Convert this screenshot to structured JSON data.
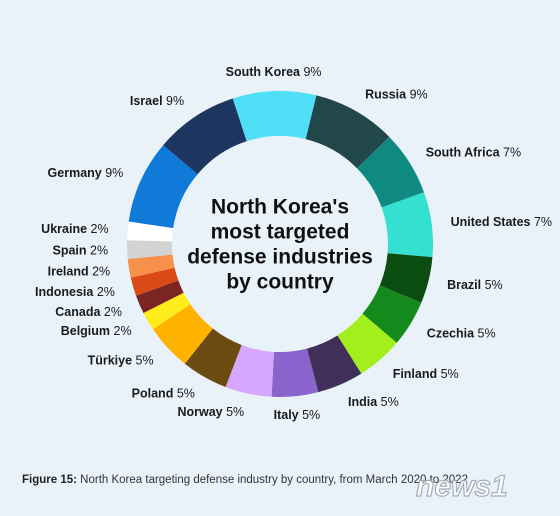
{
  "chart_data": {
    "type": "pie",
    "donut": true,
    "center_title_lines": [
      "North Korea's",
      "most targeted",
      "defense industries",
      "by country"
    ],
    "slices": [
      {
        "name": "South Korea",
        "label": "9%",
        "value": 9,
        "color": "#4fe0f7"
      },
      {
        "name": "Russia",
        "label": "9%",
        "value": 9,
        "color": "#22474a"
      },
      {
        "name": "South Africa",
        "label": "7%",
        "value": 7,
        "color": "#0e8a80"
      },
      {
        "name": "United States",
        "label": "7%",
        "value": 7,
        "color": "#34e0cf"
      },
      {
        "name": "Brazil",
        "label": "5%",
        "value": 5,
        "color": "#0b4d10"
      },
      {
        "name": "Czechia",
        "label": "5%",
        "value": 5,
        "color": "#158a1c"
      },
      {
        "name": "Finland",
        "label": "5%",
        "value": 5,
        "color": "#a2ef1b"
      },
      {
        "name": "India",
        "label": "5%",
        "value": 5,
        "color": "#3f2f59"
      },
      {
        "name": "Italy",
        "label": "5%",
        "value": 5,
        "color": "#8a63cc"
      },
      {
        "name": "Norway",
        "label": "5%",
        "value": 5,
        "color": "#d7a6ff"
      },
      {
        "name": "Poland",
        "label": "5%",
        "value": 5,
        "color": "#6b4b12"
      },
      {
        "name": "Türkiye",
        "label": "5%",
        "value": 5,
        "color": "#ffb300"
      },
      {
        "name": "Belgium",
        "label": "2%",
        "value": 2,
        "color": "#ffec1a"
      },
      {
        "name": "Canada",
        "label": "2%",
        "value": 2,
        "color": "#7b2424"
      },
      {
        "name": "Indonesia",
        "label": "2%",
        "value": 2,
        "color": "#d94a17"
      },
      {
        "name": "Ireland",
        "label": "2%",
        "value": 2,
        "color": "#f7904a"
      },
      {
        "name": "Spain",
        "label": "2%",
        "value": 2,
        "color": "#d3d3d3"
      },
      {
        "name": "Ukraine",
        "label": "2%",
        "value": 2,
        "color": "#ffffff"
      },
      {
        "name": "Germany",
        "label": "9%",
        "value": 9,
        "color": "#0f7ad8"
      },
      {
        "name": "Israel",
        "label": "9%",
        "value": 9,
        "color": "#1c3660"
      }
    ]
  },
  "caption": {
    "label": "Figure 15:",
    "text": "North Korea targeting defense industry by country, from March 2020 to 2022"
  },
  "watermark": {
    "text": "news1"
  }
}
